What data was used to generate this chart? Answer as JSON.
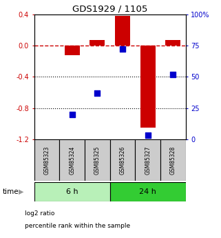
{
  "title": "GDS1929 / 1105",
  "samples": [
    "GSM85323",
    "GSM85324",
    "GSM85325",
    "GSM85326",
    "GSM85327",
    "GSM85328"
  ],
  "log2_ratio": [
    0.0,
    -0.12,
    0.07,
    0.38,
    -1.05,
    0.07
  ],
  "percentile_rank": [
    null,
    20.0,
    37.0,
    72.0,
    3.0,
    52.0
  ],
  "groups": [
    {
      "label": "6 h",
      "indices": [
        0,
        1,
        2
      ],
      "color": "#b8f0b8"
    },
    {
      "label": "24 h",
      "indices": [
        3,
        4,
        5
      ],
      "color": "#33cc33"
    }
  ],
  "ylim_left": [
    -1.2,
    0.4
  ],
  "ylim_right": [
    0,
    100
  ],
  "yticks_left": [
    0.4,
    0.0,
    -0.4,
    -0.8,
    -1.2
  ],
  "yticks_right": [
    100,
    75,
    50,
    25,
    0
  ],
  "bar_color": "#cc0000",
  "dot_color": "#0000cc",
  "bar_width": 0.6,
  "dot_size": 28,
  "hline_color": "#cc0000",
  "hline_style": "--",
  "dotted_lines": [
    -0.4,
    -0.8
  ],
  "dotted_color": "black",
  "bg_color": "white",
  "axis_color": "black",
  "left_tick_color": "#cc0000",
  "right_tick_color": "#0000cc",
  "legend_items": [
    {
      "label": "log2 ratio",
      "color": "#cc0000"
    },
    {
      "label": "percentile rank within the sample",
      "color": "#0000cc"
    }
  ],
  "time_label": "time",
  "sample_box_color": "#cccccc",
  "sample_box_border": "black"
}
